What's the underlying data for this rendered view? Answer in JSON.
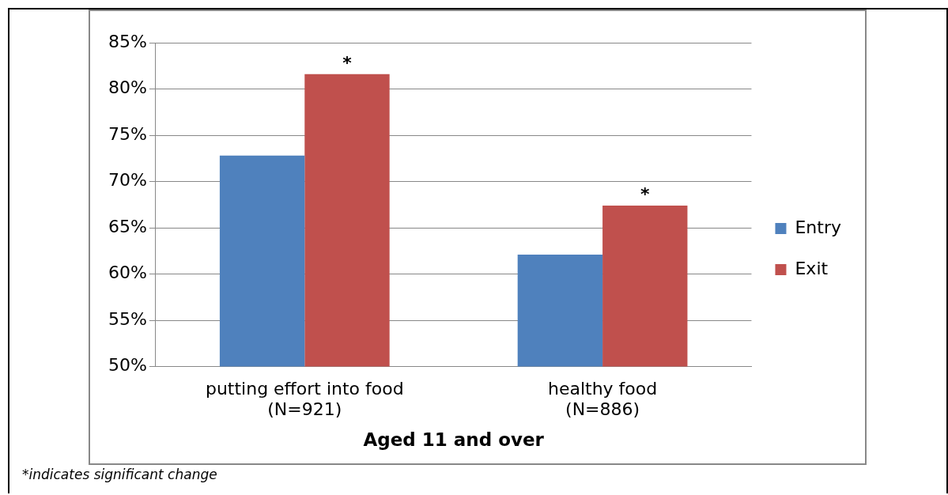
{
  "chart_data": {
    "type": "bar",
    "xlabel": "Aged 11 and over",
    "categories": [
      "putting effort into food\n(N=921)",
      "healthy food\n(N=886)"
    ],
    "series": [
      {
        "name": "Entry",
        "color": "#4f81bd",
        "values": [
          72.8,
          62.1
        ]
      },
      {
        "name": "Exit",
        "color": "#c0504d",
        "values": [
          81.6,
          67.4
        ]
      }
    ],
    "ylim": [
      50,
      85
    ],
    "yticks": [
      {
        "value": 50,
        "label": "50%"
      },
      {
        "value": 55,
        "label": "55%"
      },
      {
        "value": 60,
        "label": "60%"
      },
      {
        "value": 65,
        "label": "65%"
      },
      {
        "value": 70,
        "label": "70%"
      },
      {
        "value": 75,
        "label": "75%"
      },
      {
        "value": 80,
        "label": "80%"
      },
      {
        "value": 85,
        "label": "85%"
      }
    ],
    "grid": "y",
    "legend": "right",
    "annotations": [
      {
        "text": "*",
        "x": "putting effort into food\n(N=921)",
        "y": 81.6
      },
      {
        "text": "*",
        "x": "healthy food\n(N=886)",
        "y": 67.4
      },
      "*indicates significant change"
    ]
  }
}
